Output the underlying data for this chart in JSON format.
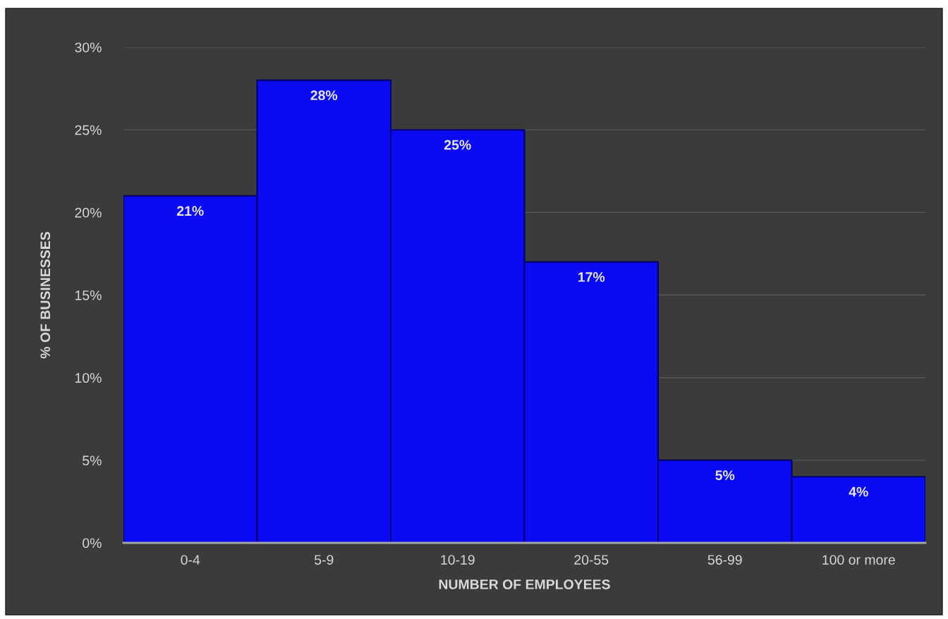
{
  "chart_data": {
    "type": "bar",
    "categories": [
      "0-4",
      "5-9",
      "10-19",
      "20-55",
      "56-99",
      "100 or more"
    ],
    "values": [
      21,
      28,
      25,
      17,
      5,
      4
    ],
    "value_labels": [
      "21%",
      "28%",
      "25%",
      "17%",
      "5%",
      "4%"
    ],
    "color": "#0a0af5",
    "ylim": [
      0,
      30
    ],
    "yticks": [
      {
        "value": 0,
        "label": "0%"
      },
      {
        "value": 5,
        "label": "5%"
      },
      {
        "value": 10,
        "label": "10%"
      },
      {
        "value": 15,
        "label": "15%"
      },
      {
        "value": 20,
        "label": "20%"
      },
      {
        "value": 25,
        "label": "25%"
      },
      {
        "value": 30,
        "label": "30%"
      }
    ],
    "xlabel": "NUMBER OF EMPLOYEES",
    "ylabel": "% OF BUSINESSES",
    "grid": "y"
  }
}
